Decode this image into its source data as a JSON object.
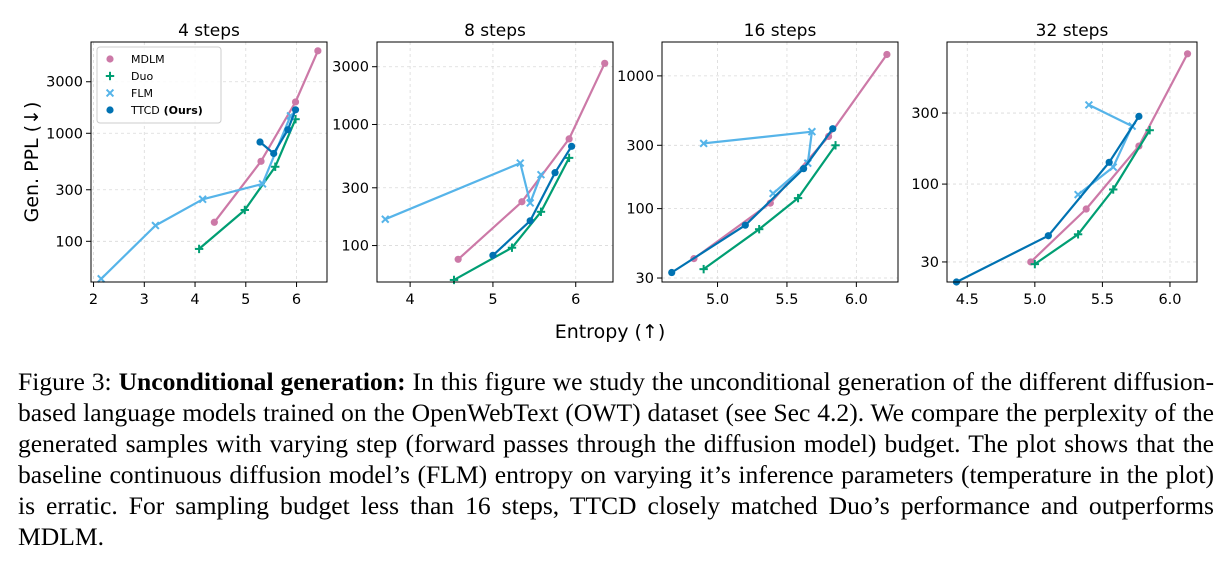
{
  "figure": {
    "ylabel": "Gen. PPL (↓)",
    "xlabel": "Entropy (↑)"
  },
  "colors": {
    "MDLM": "#cc79a7",
    "Duo": "#009e73",
    "FLM": "#56b4e9",
    "TTCD": "#0072b2"
  },
  "legend": [
    {
      "key": "MDLM",
      "label": "MDLM",
      "marker": "circle",
      "suffix": ""
    },
    {
      "key": "Duo",
      "label": "Duo",
      "marker": "plus",
      "suffix": ""
    },
    {
      "key": "FLM",
      "label": "FLM",
      "marker": "cross",
      "suffix": ""
    },
    {
      "key": "TTCD",
      "label": "TTCD",
      "marker": "circle",
      "suffix": "(Ours)"
    }
  ],
  "chart_data": [
    {
      "type": "line",
      "title": "4 steps",
      "yscale": "log",
      "grid": true,
      "legend_position": "upper-left",
      "xlim": [
        1.95,
        6.6
      ],
      "ylim": [
        42,
        7000
      ],
      "xticks": [
        2,
        3,
        4,
        5,
        6
      ],
      "xticklabels": [
        "2",
        "3",
        "4",
        "5",
        "6"
      ],
      "yticks": [
        100,
        300,
        1000,
        3000
      ],
      "yticklabels": [
        "100",
        "300",
        "1000",
        "3000"
      ],
      "series": [
        {
          "name": "MDLM",
          "x": [
            4.38,
            5.3,
            5.98,
            6.42
          ],
          "y": [
            150,
            550,
            1950,
            5800
          ]
        },
        {
          "name": "Duo",
          "x": [
            4.08,
            4.98,
            5.58,
            5.98
          ],
          "y": [
            85,
            195,
            490,
            1350
          ]
        },
        {
          "name": "FLM",
          "x": [
            2.15,
            3.22,
            4.15,
            5.33,
            5.88
          ],
          "y": [
            45,
            140,
            245,
            340,
            1450
          ]
        },
        {
          "name": "TTCD",
          "x": [
            5.28,
            5.55,
            5.83,
            5.98
          ],
          "y": [
            830,
            650,
            1080,
            1650
          ]
        }
      ]
    },
    {
      "type": "line",
      "title": "8 steps",
      "yscale": "log",
      "grid": true,
      "xlim": [
        3.6,
        6.45
      ],
      "ylim": [
        50,
        4800
      ],
      "xticks": [
        4,
        5,
        6
      ],
      "xticklabels": [
        "4",
        "5",
        "6"
      ],
      "yticks": [
        100,
        300,
        1000,
        3000
      ],
      "yticklabels": [
        "100",
        "300",
        "1000",
        "3000"
      ],
      "series": [
        {
          "name": "MDLM",
          "x": [
            4.58,
            5.35,
            5.92,
            6.35
          ],
          "y": [
            77,
            230,
            760,
            3200
          ]
        },
        {
          "name": "Duo",
          "x": [
            4.53,
            5.23,
            5.58,
            5.92
          ],
          "y": [
            52,
            96,
            190,
            530
          ]
        },
        {
          "name": "FLM",
          "x": [
            3.7,
            5.33,
            5.45,
            5.58
          ],
          "y": [
            165,
            480,
            225,
            385
          ]
        },
        {
          "name": "TTCD",
          "x": [
            5.0,
            5.45,
            5.75,
            5.95
          ],
          "y": [
            83,
            160,
            400,
            660
          ]
        }
      ]
    },
    {
      "type": "line",
      "title": "16 steps",
      "yscale": "log",
      "grid": true,
      "xlim": [
        4.6,
        6.3
      ],
      "ylim": [
        28,
        1800
      ],
      "xticks": [
        5.0,
        5.5,
        6.0
      ],
      "xticklabels": [
        "5.0",
        "5.5",
        "6.0"
      ],
      "yticks": [
        30,
        100,
        300,
        1000
      ],
      "yticklabels": [
        "30",
        "100",
        "300",
        "1000"
      ],
      "series": [
        {
          "name": "MDLM",
          "x": [
            4.83,
            5.38,
            5.8,
            6.22
          ],
          "y": [
            42,
            110,
            350,
            1450
          ]
        },
        {
          "name": "Duo",
          "x": [
            4.9,
            5.3,
            5.58,
            5.85
          ],
          "y": [
            35,
            70,
            120,
            300
          ]
        },
        {
          "name": "FLM",
          "x": [
            4.9,
            5.68,
            5.65,
            5.4
          ],
          "y": [
            310,
            380,
            220,
            130
          ]
        },
        {
          "name": "TTCD",
          "x": [
            4.67,
            5.2,
            5.62,
            5.83
          ],
          "y": [
            33,
            75,
            200,
            400
          ]
        }
      ]
    },
    {
      "type": "line",
      "title": "32 steps",
      "yscale": "log",
      "grid": true,
      "xlim": [
        4.35,
        6.2
      ],
      "ylim": [
        22,
        900
      ],
      "xticks": [
        4.5,
        5.0,
        5.5,
        6.0
      ],
      "xticklabels": [
        "4.5",
        "5.0",
        "5.5",
        "6.0"
      ],
      "yticks": [
        30,
        100,
        300
      ],
      "yticklabels": [
        "30",
        "100",
        "300"
      ],
      "series": [
        {
          "name": "MDLM",
          "x": [
            4.97,
            5.38,
            5.77,
            6.13
          ],
          "y": [
            30,
            68,
            180,
            750
          ]
        },
        {
          "name": "Duo",
          "x": [
            5.0,
            5.32,
            5.58,
            5.85
          ],
          "y": [
            29,
            46,
            92,
            230
          ]
        },
        {
          "name": "FLM",
          "x": [
            5.4,
            5.72,
            5.58,
            5.32
          ],
          "y": [
            340,
            245,
            130,
            85
          ]
        },
        {
          "name": "TTCD",
          "x": [
            4.42,
            5.1,
            5.55,
            5.77
          ],
          "y": [
            22,
            45,
            140,
            285
          ]
        }
      ]
    }
  ],
  "caption": {
    "label": "Figure 3:",
    "bold": "Unconditional generation:",
    "text": "In this figure we study the unconditional generation of the different diffusion-based language models trained on the OpenWebText (OWT) dataset (see Sec 4.2). We compare the perplexity of the generated samples with varying step (forward passes through the diffusion model) budget. The plot shows that the baseline continuous diffusion model’s (FLM) entropy on varying it’s inference parameters (temperature in the plot) is erratic. For sampling budget less than 16 steps, TTCD closely matched Duo’s performance and outperforms MDLM."
  }
}
